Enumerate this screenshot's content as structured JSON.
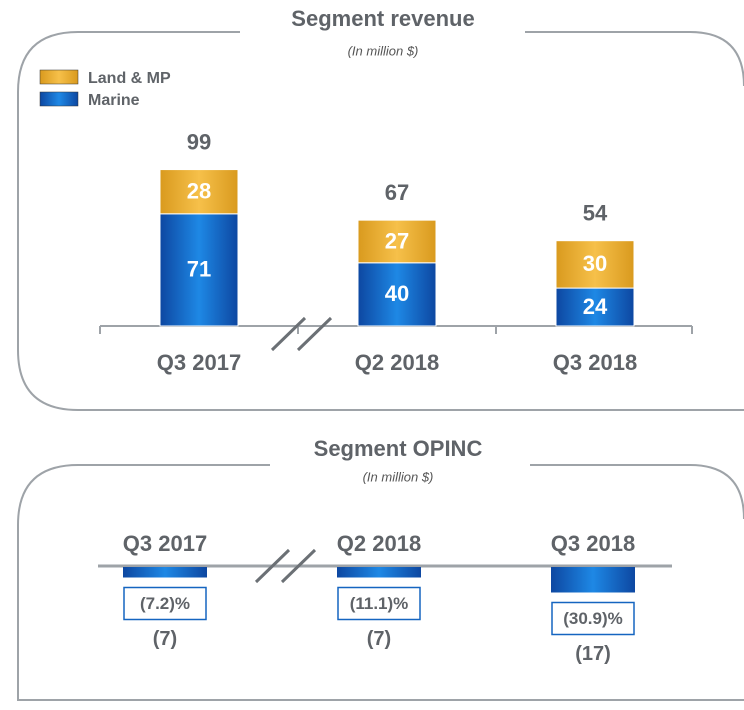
{
  "chart_data": [
    {
      "type": "stacked-bar",
      "title": "Segment revenue",
      "subtitle": "(In million $)",
      "categories": [
        "Q3 2017",
        "Q2 2018",
        "Q3 2018"
      ],
      "series": [
        {
          "name": "Marine",
          "color": "#1565c0",
          "values": [
            71,
            40,
            24
          ]
        },
        {
          "name": "Land & MP",
          "color": "#f0b030",
          "values": [
            28,
            27,
            30
          ]
        }
      ],
      "totals": [
        99,
        67,
        54
      ]
    },
    {
      "type": "bar",
      "title": "Segment OPINC",
      "subtitle": "(In million $)",
      "categories": [
        "Q3 2017",
        "Q2 2018",
        "Q3 2018"
      ],
      "color": "#1565c0",
      "values": [
        -7,
        -7,
        -17
      ],
      "value_labels": [
        "(7)",
        "(7)",
        "(17)"
      ],
      "margins": [
        -7.2,
        -11.1,
        -30.9
      ],
      "margin_labels": [
        "(7.2)%",
        "(11.1)%",
        "(30.9)%"
      ]
    }
  ]
}
